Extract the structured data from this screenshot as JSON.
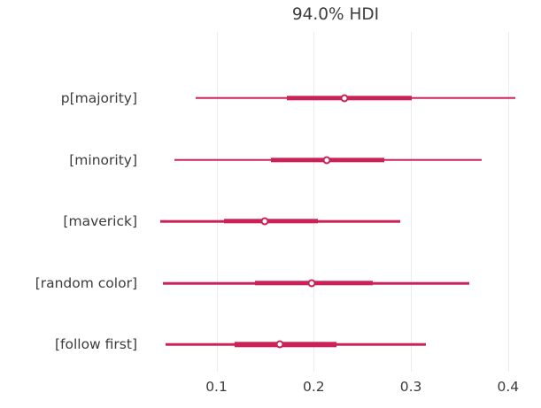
{
  "chart_data": {
    "type": "forest",
    "title": "94.0% HDI",
    "hdi_prob": "94.0%",
    "rows": [
      {
        "label": "p[majority]",
        "hdi_lo": 0.079,
        "hdi_hi": 0.407,
        "quartile_lo": 0.172,
        "quartile_hi": 0.301,
        "median": 0.232
      },
      {
        "label": "[minority]",
        "hdi_lo": 0.057,
        "hdi_hi": 0.373,
        "quartile_lo": 0.156,
        "quartile_hi": 0.273,
        "median": 0.213
      },
      {
        "label": "[maverick]",
        "hdi_lo": 0.042,
        "hdi_hi": 0.289,
        "quartile_lo": 0.108,
        "quartile_hi": 0.204,
        "median": 0.15
      },
      {
        "label": "[random color]",
        "hdi_lo": 0.045,
        "hdi_hi": 0.36,
        "quartile_lo": 0.14,
        "quartile_hi": 0.261,
        "median": 0.198
      },
      {
        "label": "[follow first]",
        "hdi_lo": 0.048,
        "hdi_hi": 0.315,
        "quartile_lo": 0.119,
        "quartile_hi": 0.223,
        "median": 0.165
      }
    ],
    "x_ticks": [
      "0.1",
      "0.2",
      "0.3",
      "0.4"
    ],
    "x_tick_values": [
      0.1,
      0.2,
      0.3,
      0.4
    ],
    "xlim": [
      0.023,
      0.422
    ],
    "xlabel": "",
    "ylabel": "",
    "grid": "vertical",
    "legend": "none",
    "colors": {
      "interval": "#ca2157",
      "marker_fill": "#ffffff",
      "grid": "#ececec",
      "text": "#3b3b3b",
      "background": "#ffffff"
    }
  }
}
